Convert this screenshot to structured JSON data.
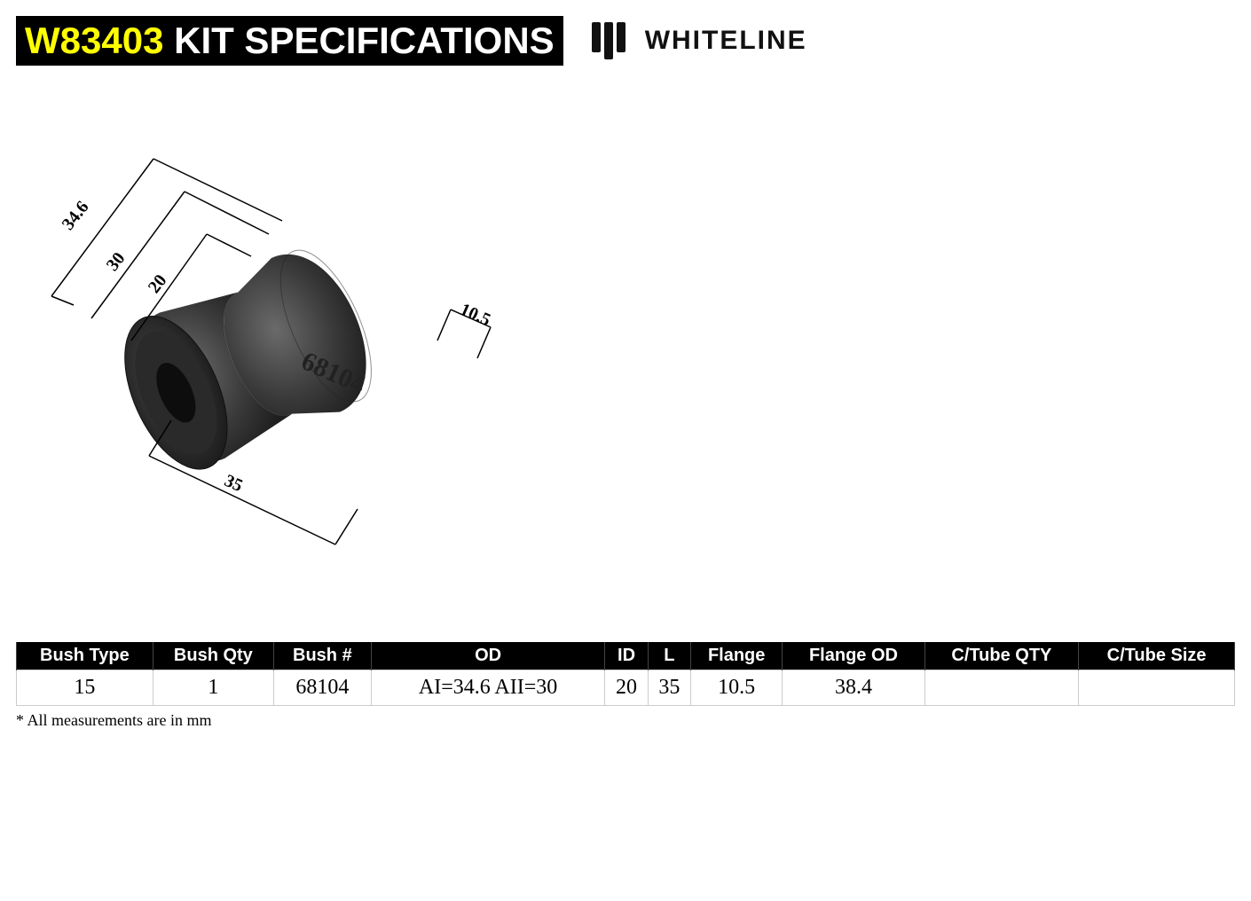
{
  "header": {
    "part_no": "W83403",
    "title_suffix": " KIT SPECIFICATIONS",
    "brand": "WHITELINE"
  },
  "diagram": {
    "part_label": "68104",
    "dims": {
      "od1": "34.6",
      "od2": "30",
      "id": "20",
      "length": "35",
      "flange": "10.5"
    },
    "colors": {
      "bush_dark": "#2f2f2f",
      "bush_light": "#555555",
      "line": "#000000"
    }
  },
  "table": {
    "columns": [
      "Bush Type",
      "Bush Qty",
      "Bush #",
      "OD",
      "ID",
      "L",
      "Flange",
      "Flange OD",
      "C/Tube QTY",
      "C/Tube Size"
    ],
    "rows": [
      [
        "15",
        "1",
        "68104",
        "AI=34.6 AII=30",
        "20",
        "35",
        "10.5",
        "38.4",
        "",
        ""
      ]
    ],
    "col_widths": [
      "140",
      "124",
      "100",
      "240",
      "44",
      "44",
      "94",
      "146",
      "158",
      "160"
    ]
  },
  "footnote": "* All measurements are in mm"
}
